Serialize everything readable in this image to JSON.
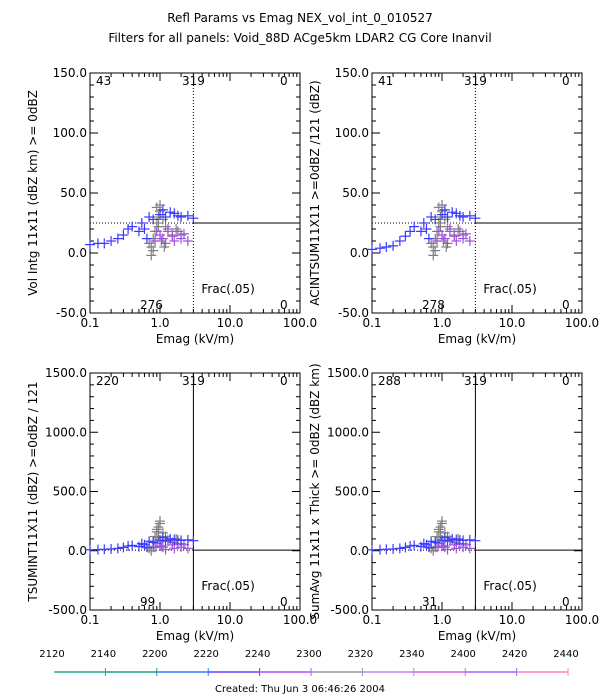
{
  "figure": {
    "title_line1": "Refl Params vs Emag    NEX_vol_int_0_010527",
    "title_line2": "Filters for all panels:  Void_88D ACge5km LDAR2 CG Core Inanvil",
    "footer": "Created: Thu Jun  3 06:46:26 2004"
  },
  "time_bar": {
    "tick_labels": [
      "2120",
      "2140",
      "2200",
      "2220",
      "2240",
      "2300",
      "2320",
      "2340",
      "2400",
      "2420",
      "2440"
    ],
    "segment_colors": [
      "#2ca58d",
      "#1f9e89",
      "#2a7fff",
      "#6a3dff",
      "#b050ff",
      "#9a9a9a",
      "#c080ff",
      "#e060e0",
      "#a060ff",
      "#ff80c0"
    ]
  },
  "chart_data": [
    {
      "type": "scatter",
      "id": "tl",
      "ylabel": "Vol Intg 11x11 (dBZ km) >= 0dBZ",
      "xlabel": "Emag (kV/m)",
      "xscale": "log",
      "xlim": [
        0.1,
        100.0
      ],
      "ylim": [
        -50.0,
        150.0
      ],
      "xticks": [
        "0.1",
        "1.0",
        "10.0",
        "100.0"
      ],
      "yticks": [
        {
          "v": -50,
          "t": "-50.0"
        },
        {
          "v": 0,
          "t": "0.0"
        },
        {
          "v": 50,
          "t": "50.0"
        },
        {
          "v": 100,
          "t": "100.0"
        },
        {
          "v": 150,
          "t": "150.0"
        }
      ],
      "counts": {
        "top_left": "43",
        "top_center": "319",
        "top_right": "0",
        "bottom_center": "276",
        "bottom_right": "0"
      },
      "annotation": "Frac(.05)",
      "vline_x": 3.0,
      "vline_style": "dotted",
      "hline_y": 25.0,
      "hline_style": "dotted",
      "series": [
        {
          "color": "#808080",
          "points": [
            [
              0.75,
              5
            ],
            [
              0.8,
              12
            ],
            [
              0.85,
              18
            ],
            [
              0.9,
              25
            ],
            [
              0.95,
              30
            ],
            [
              1.0,
              35
            ],
            [
              1.0,
              40
            ],
            [
              0.9,
              38
            ],
            [
              0.8,
              2
            ],
            [
              0.75,
              -2
            ],
            [
              1.1,
              28
            ],
            [
              1.2,
              22
            ],
            [
              1.3,
              18
            ],
            [
              1.5,
              15
            ],
            [
              1.7,
              20
            ],
            [
              2.0,
              15
            ],
            [
              0.95,
              22
            ],
            [
              1.05,
              10
            ],
            [
              1.15,
              5
            ],
            [
              0.7,
              8
            ]
          ]
        },
        {
          "color": "#a050e0",
          "points": [
            [
              0.9,
              18
            ],
            [
              1.0,
              15
            ],
            [
              1.1,
              12
            ],
            [
              1.3,
              20
            ],
            [
              1.5,
              14
            ],
            [
              1.6,
              10
            ],
            [
              1.8,
              18
            ],
            [
              2.0,
              12
            ],
            [
              2.2,
              16
            ],
            [
              2.5,
              10
            ],
            [
              1.2,
              8
            ],
            [
              0.85,
              10
            ]
          ]
        },
        {
          "color": "#3a3aff",
          "points": [
            [
              0.1,
              7
            ],
            [
              0.13,
              8
            ],
            [
              0.16,
              8
            ],
            [
              0.2,
              10
            ],
            [
              0.25,
              12
            ],
            [
              0.3,
              15
            ],
            [
              0.35,
              20
            ],
            [
              0.4,
              22
            ],
            [
              0.5,
              18
            ],
            [
              0.55,
              25
            ],
            [
              0.6,
              20
            ],
            [
              0.7,
              30
            ],
            [
              0.8,
              28
            ],
            [
              1.0,
              32
            ],
            [
              1.2,
              30
            ],
            [
              1.4,
              34
            ],
            [
              1.6,
              33
            ],
            [
              1.8,
              31
            ],
            [
              2.0,
              30
            ],
            [
              2.5,
              31
            ],
            [
              3.0,
              29
            ],
            [
              1.1,
              36
            ],
            [
              0.65,
              12
            ]
          ]
        }
      ]
    },
    {
      "type": "scatter",
      "id": "tr",
      "ylabel": "ACINTSUM11X11 >=0dBZ /121 (dBZ)",
      "xlabel": "Emag (kV/m)",
      "xscale": "log",
      "xlim": [
        0.1,
        100.0
      ],
      "ylim": [
        -50.0,
        150.0
      ],
      "xticks": [
        "0.1",
        "1.0",
        "10.0",
        "100.0"
      ],
      "yticks": [
        {
          "v": -50,
          "t": "-50.0"
        },
        {
          "v": 0,
          "t": "0.0"
        },
        {
          "v": 50,
          "t": "50.0"
        },
        {
          "v": 100,
          "t": "100.0"
        },
        {
          "v": 150,
          "t": "150.0"
        }
      ],
      "counts": {
        "top_left": "41",
        "top_center": "319",
        "top_right": "0",
        "bottom_center": "278",
        "bottom_right": "0"
      },
      "annotation": "Frac(.05)",
      "vline_x": 3.0,
      "vline_style": "dotted",
      "hline_y": 25.0,
      "hline_style": "dotted",
      "series": [
        {
          "color": "#808080",
          "points": [
            [
              0.75,
              5
            ],
            [
              0.8,
              12
            ],
            [
              0.85,
              18
            ],
            [
              0.9,
              25
            ],
            [
              0.95,
              30
            ],
            [
              1.0,
              35
            ],
            [
              1.0,
              40
            ],
            [
              0.9,
              38
            ],
            [
              0.8,
              2
            ],
            [
              0.75,
              -2
            ],
            [
              1.1,
              28
            ],
            [
              1.2,
              22
            ],
            [
              1.3,
              18
            ],
            [
              1.5,
              15
            ],
            [
              1.7,
              20
            ],
            [
              2.0,
              15
            ],
            [
              0.95,
              22
            ],
            [
              1.05,
              10
            ],
            [
              1.15,
              5
            ],
            [
              0.7,
              8
            ]
          ]
        },
        {
          "color": "#a050e0",
          "points": [
            [
              0.9,
              18
            ],
            [
              1.0,
              15
            ],
            [
              1.1,
              12
            ],
            [
              1.3,
              20
            ],
            [
              1.5,
              14
            ],
            [
              1.6,
              10
            ],
            [
              1.8,
              18
            ],
            [
              2.0,
              12
            ],
            [
              2.2,
              16
            ],
            [
              2.5,
              10
            ],
            [
              1.2,
              8
            ],
            [
              0.85,
              10
            ]
          ]
        },
        {
          "color": "#3a3aff",
          "points": [
            [
              0.1,
              3
            ],
            [
              0.13,
              4
            ],
            [
              0.16,
              5
            ],
            [
              0.2,
              6
            ],
            [
              0.25,
              10
            ],
            [
              0.3,
              14
            ],
            [
              0.35,
              18
            ],
            [
              0.4,
              22
            ],
            [
              0.5,
              18
            ],
            [
              0.55,
              25
            ],
            [
              0.6,
              20
            ],
            [
              0.7,
              30
            ],
            [
              0.8,
              28
            ],
            [
              1.0,
              32
            ],
            [
              1.2,
              30
            ],
            [
              1.4,
              34
            ],
            [
              1.6,
              33
            ],
            [
              1.8,
              31
            ],
            [
              2.0,
              30
            ],
            [
              2.5,
              31
            ],
            [
              3.0,
              29
            ],
            [
              1.1,
              36
            ],
            [
              0.65,
              12
            ]
          ]
        }
      ]
    },
    {
      "type": "scatter",
      "id": "bl",
      "ylabel": "TSUMINT11X11 (dBZ) >=0dBZ / 121",
      "xlabel": "Emag (kV/m)",
      "xscale": "log",
      "xlim": [
        0.1,
        100.0
      ],
      "ylim": [
        -500.0,
        1500.0
      ],
      "xticks": [
        "0.1",
        "1.0",
        "10.0",
        "100.0"
      ],
      "yticks": [
        {
          "v": -500,
          "t": "-500.0"
        },
        {
          "v": 0,
          "t": "0.0"
        },
        {
          "v": 500,
          "t": "500.0"
        },
        {
          "v": 1000,
          "t": "1000.0"
        },
        {
          "v": 1500,
          "t": "1500.0"
        }
      ],
      "counts": {
        "top_left": "220",
        "top_center": "319",
        "top_right": "0",
        "bottom_center": "99",
        "bottom_right": "0"
      },
      "annotation": "Frac(.05)",
      "vline_x": 3.0,
      "vline_style": "solid",
      "hline_y": 5.0,
      "hline_style": "dotted",
      "series": [
        {
          "color": "#808080",
          "points": [
            [
              0.8,
              80
            ],
            [
              0.85,
              120
            ],
            [
              0.9,
              160
            ],
            [
              0.95,
              200
            ],
            [
              1.0,
              230
            ],
            [
              1.0,
              250
            ],
            [
              0.9,
              180
            ],
            [
              0.8,
              30
            ],
            [
              0.75,
              0
            ],
            [
              1.1,
              150
            ],
            [
              1.2,
              120
            ],
            [
              1.3,
              90
            ],
            [
              1.5,
              70
            ],
            [
              1.7,
              100
            ],
            [
              2.0,
              60
            ],
            [
              0.95,
              110
            ],
            [
              1.05,
              40
            ],
            [
              0.7,
              20
            ]
          ]
        },
        {
          "color": "#a050e0",
          "points": [
            [
              0.9,
              60
            ],
            [
              1.0,
              40
            ],
            [
              1.1,
              30
            ],
            [
              1.3,
              80
            ],
            [
              1.5,
              50
            ],
            [
              1.6,
              20
            ],
            [
              1.8,
              60
            ],
            [
              2.0,
              30
            ],
            [
              2.2,
              50
            ],
            [
              2.5,
              20
            ],
            [
              1.2,
              10
            ],
            [
              0.85,
              30
            ]
          ]
        },
        {
          "color": "#3a3aff",
          "points": [
            [
              0.1,
              8
            ],
            [
              0.13,
              10
            ],
            [
              0.16,
              12
            ],
            [
              0.2,
              15
            ],
            [
              0.25,
              20
            ],
            [
              0.3,
              28
            ],
            [
              0.35,
              40
            ],
            [
              0.4,
              45
            ],
            [
              0.5,
              35
            ],
            [
              0.55,
              60
            ],
            [
              0.6,
              50
            ],
            [
              0.7,
              80
            ],
            [
              0.8,
              70
            ],
            [
              1.0,
              90
            ],
            [
              1.2,
              85
            ],
            [
              1.4,
              100
            ],
            [
              1.6,
              95
            ],
            [
              1.8,
              90
            ],
            [
              2.0,
              88
            ],
            [
              2.5,
              92
            ],
            [
              3.0,
              85
            ],
            [
              1.1,
              110
            ],
            [
              0.65,
              30
            ]
          ]
        }
      ]
    },
    {
      "type": "scatter",
      "id": "br",
      "ylabel": "SumAvg 11x11 x Thick >= 0dBZ (dBZ km)",
      "xlabel": "Emag (kV/m)",
      "xscale": "log",
      "xlim": [
        0.1,
        100.0
      ],
      "ylim": [
        -500.0,
        1500.0
      ],
      "xticks": [
        "0.1",
        "1.0",
        "10.0",
        "100.0"
      ],
      "yticks": [
        {
          "v": -500,
          "t": "-500.0"
        },
        {
          "v": 0,
          "t": "0.0"
        },
        {
          "v": 500,
          "t": "500.0"
        },
        {
          "v": 1000,
          "t": "1000.0"
        },
        {
          "v": 1500,
          "t": "1500.0"
        }
      ],
      "counts": {
        "top_left": "288",
        "top_center": "319",
        "top_right": "0",
        "bottom_center": "31",
        "bottom_right": "0"
      },
      "annotation": "Frac(.05)",
      "vline_x": 3.0,
      "vline_style": "solid",
      "hline_y": 5.0,
      "hline_style": "dotted",
      "series": [
        {
          "color": "#808080",
          "points": [
            [
              0.8,
              80
            ],
            [
              0.85,
              120
            ],
            [
              0.9,
              160
            ],
            [
              0.95,
              200
            ],
            [
              1.0,
              230
            ],
            [
              1.0,
              250
            ],
            [
              0.9,
              180
            ],
            [
              0.8,
              30
            ],
            [
              0.75,
              0
            ],
            [
              1.1,
              150
            ],
            [
              1.2,
              120
            ],
            [
              1.3,
              90
            ],
            [
              1.5,
              70
            ],
            [
              1.7,
              100
            ],
            [
              2.0,
              60
            ],
            [
              0.95,
              110
            ],
            [
              1.05,
              40
            ],
            [
              0.7,
              20
            ]
          ]
        },
        {
          "color": "#a050e0",
          "points": [
            [
              0.9,
              60
            ],
            [
              1.0,
              40
            ],
            [
              1.1,
              30
            ],
            [
              1.3,
              80
            ],
            [
              1.5,
              50
            ],
            [
              1.6,
              20
            ],
            [
              1.8,
              60
            ],
            [
              2.0,
              30
            ],
            [
              2.2,
              50
            ],
            [
              2.5,
              20
            ],
            [
              1.2,
              10
            ],
            [
              0.85,
              30
            ]
          ]
        },
        {
          "color": "#3a3aff",
          "points": [
            [
              0.1,
              8
            ],
            [
              0.13,
              10
            ],
            [
              0.16,
              12
            ],
            [
              0.2,
              15
            ],
            [
              0.25,
              20
            ],
            [
              0.3,
              28
            ],
            [
              0.35,
              40
            ],
            [
              0.4,
              45
            ],
            [
              0.5,
              35
            ],
            [
              0.55,
              60
            ],
            [
              0.6,
              50
            ],
            [
              0.7,
              80
            ],
            [
              0.8,
              70
            ],
            [
              1.0,
              90
            ],
            [
              1.2,
              85
            ],
            [
              1.4,
              100
            ],
            [
              1.6,
              95
            ],
            [
              1.8,
              90
            ],
            [
              2.0,
              88
            ],
            [
              2.5,
              92
            ],
            [
              3.0,
              85
            ],
            [
              1.1,
              110
            ],
            [
              0.65,
              30
            ]
          ]
        }
      ]
    }
  ]
}
